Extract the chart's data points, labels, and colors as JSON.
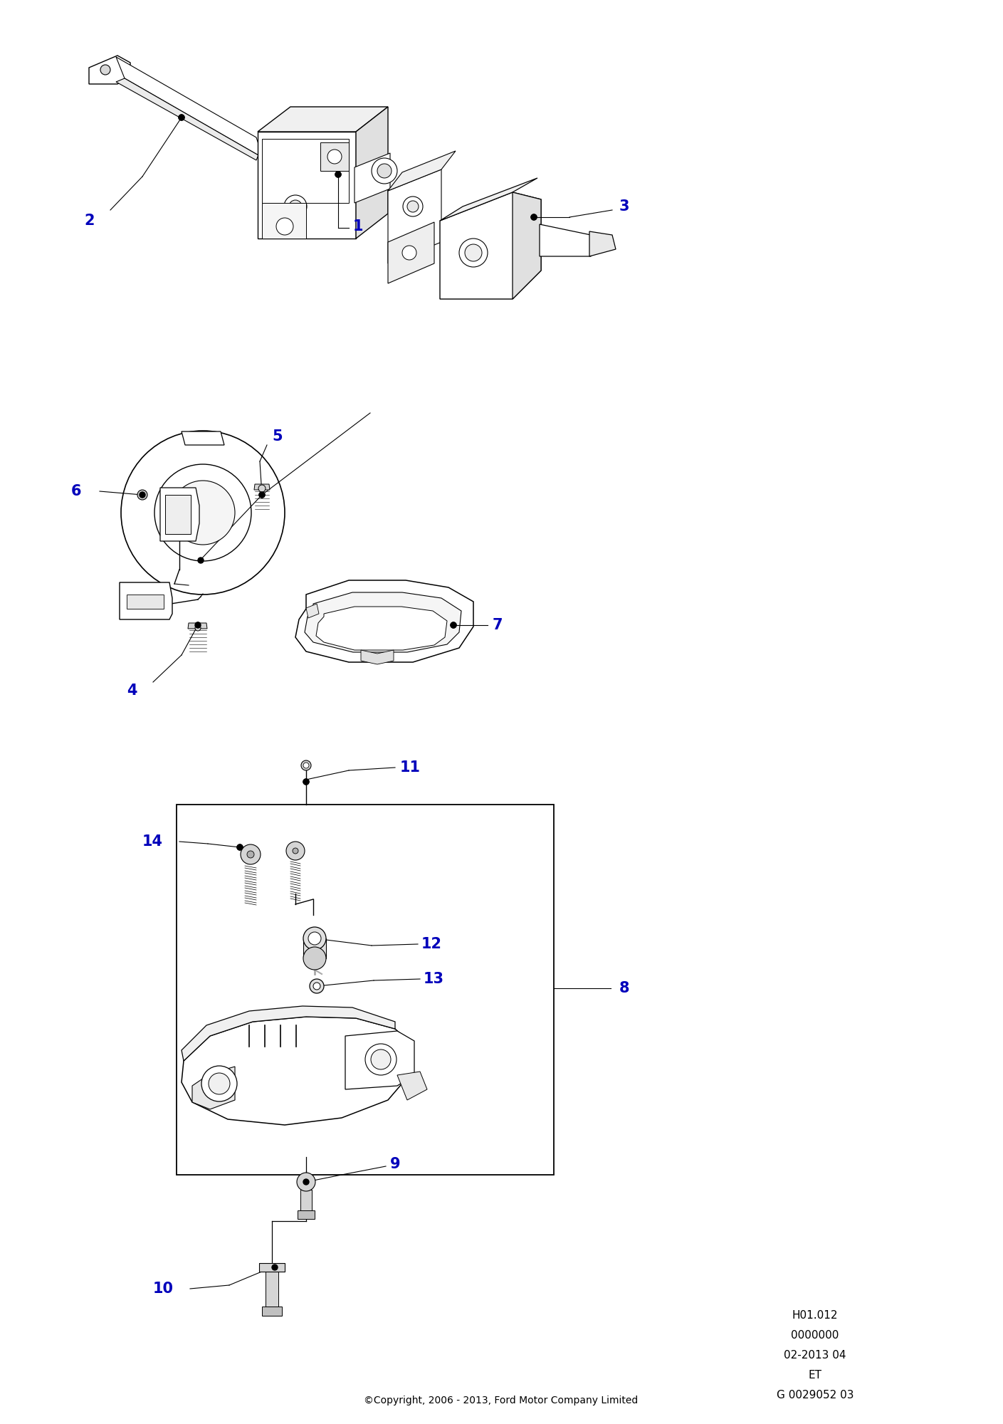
{
  "bg_color": "#ffffff",
  "line_color": "#000000",
  "label_color": "#0000bb",
  "copyright": "©Copyright, 2006 - 2013, Ford Motor Company Limited",
  "ref_text": [
    "H01.012",
    "0000000",
    "02-2013 04",
    "ET",
    "G 0029052 03"
  ],
  "fig_width": 14.09,
  "fig_height": 20.0,
  "dpi": 100,
  "label_fontsize": 15,
  "ref_fontsize": 11,
  "copy_fontsize": 10
}
